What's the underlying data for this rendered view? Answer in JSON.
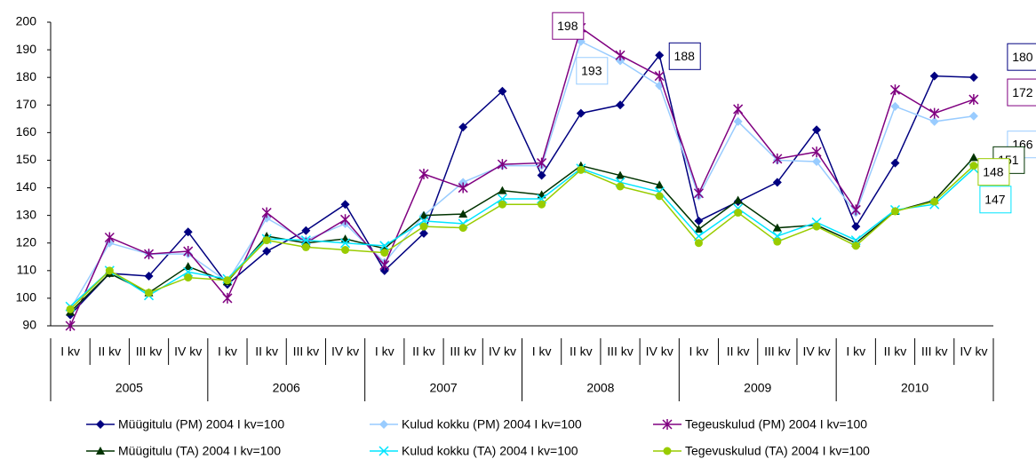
{
  "chart_data": {
    "type": "line",
    "categories": [
      "I kv",
      "II kv",
      "III kv",
      "IV kv",
      "I kv",
      "II kv",
      "III kv",
      "IV kv",
      "I kv",
      "II kv",
      "III kv",
      "IV kv",
      "I kv",
      "II kv",
      "III kv",
      "IV kv",
      "I kv",
      "II kv",
      "III kv",
      "IV kv",
      "I kv",
      "II kv",
      "III kv",
      "IV kv"
    ],
    "category_groups": [
      "2005",
      "2006",
      "2007",
      "2008",
      "2009",
      "2010"
    ],
    "ylim": [
      90,
      200
    ],
    "yticks": [
      90,
      100,
      110,
      120,
      130,
      140,
      150,
      160,
      170,
      180,
      190,
      200
    ],
    "grid": false,
    "legend": "bottom",
    "series": [
      {
        "name": "Müügitulu (PM) 2004 I kv=100",
        "color": "#000080",
        "marker": "diamond",
        "values": [
          94,
          109,
          108,
          124,
          105,
          117,
          124.5,
          134,
          110,
          123.5,
          162,
          175,
          144.5,
          167,
          170,
          188,
          128,
          135,
          142,
          161,
          126,
          149,
          180.5,
          180
        ],
        "value_labels": [
          null,
          null,
          null,
          null,
          null,
          null,
          null,
          null,
          null,
          null,
          null,
          null,
          null,
          null,
          null,
          "188",
          null,
          null,
          null,
          null,
          null,
          null,
          null,
          "180"
        ]
      },
      {
        "name": "Kulud kokku (PM) 2004 I kv=100",
        "color": "#99ccff",
        "marker": "diamond",
        "values": [
          96,
          120,
          116,
          116,
          106,
          129,
          121,
          127,
          113,
          130,
          142,
          148,
          148,
          193,
          186,
          177,
          137,
          164,
          150,
          149.5,
          131,
          169.5,
          164,
          166
        ],
        "value_labels": [
          null,
          null,
          null,
          null,
          null,
          null,
          null,
          null,
          null,
          null,
          null,
          null,
          null,
          "193",
          null,
          null,
          null,
          null,
          null,
          null,
          null,
          null,
          null,
          "166"
        ]
      },
      {
        "name": "Tegeuskulud (PM) 2004 I kv=100",
        "color": "#800080",
        "marker": "star",
        "values": [
          90,
          122,
          116,
          117,
          100,
          131,
          120,
          128.5,
          112,
          145,
          140,
          148.5,
          149,
          198,
          188,
          180.5,
          138,
          168.5,
          150.5,
          153,
          132,
          175.5,
          167,
          172
        ],
        "value_labels": [
          null,
          null,
          null,
          null,
          null,
          null,
          null,
          null,
          null,
          null,
          null,
          null,
          null,
          "198",
          null,
          null,
          null,
          null,
          null,
          null,
          null,
          null,
          null,
          "172"
        ]
      },
      {
        "name": "Müügitulu (TA) 2004 I kv=100",
        "color": "#003300",
        "marker": "triangle",
        "values": [
          95,
          109,
          102,
          111.5,
          106,
          122.5,
          120,
          121.5,
          118,
          130,
          130.5,
          139,
          137.5,
          148,
          144.5,
          141,
          125,
          135.5,
          125.5,
          126.5,
          120,
          131.5,
          135.5,
          151
        ],
        "value_labels": [
          null,
          null,
          null,
          null,
          null,
          null,
          null,
          null,
          null,
          null,
          null,
          null,
          null,
          null,
          null,
          null,
          null,
          null,
          null,
          null,
          null,
          null,
          null,
          "151"
        ]
      },
      {
        "name": "Kulud kokku (TA) 2004 I kv=100",
        "color": "#00e5ff",
        "marker": "x",
        "values": [
          97,
          110,
          101,
          109.5,
          107,
          121.5,
          121,
          120,
          119,
          128,
          127,
          136,
          136,
          147,
          142,
          138.5,
          122.5,
          132.5,
          122.5,
          127.5,
          121,
          132,
          134,
          147
        ],
        "value_labels": [
          null,
          null,
          null,
          null,
          null,
          null,
          null,
          null,
          null,
          null,
          null,
          null,
          null,
          null,
          null,
          null,
          null,
          null,
          null,
          null,
          null,
          null,
          null,
          "147"
        ]
      },
      {
        "name": "Tegevuskulud (TA) 2004 I kv=100",
        "color": "#99cc00",
        "marker": "circle",
        "values": [
          96,
          110,
          102,
          107.5,
          106.5,
          121,
          118.5,
          117.5,
          116.5,
          126,
          125.5,
          134,
          134,
          146.5,
          140.5,
          137,
          120,
          131,
          120.5,
          126,
          119,
          131.5,
          135,
          148
        ],
        "value_labels": [
          null,
          null,
          null,
          null,
          null,
          null,
          null,
          null,
          null,
          null,
          null,
          null,
          null,
          null,
          null,
          null,
          null,
          null,
          null,
          null,
          null,
          null,
          null,
          "148"
        ]
      }
    ]
  }
}
